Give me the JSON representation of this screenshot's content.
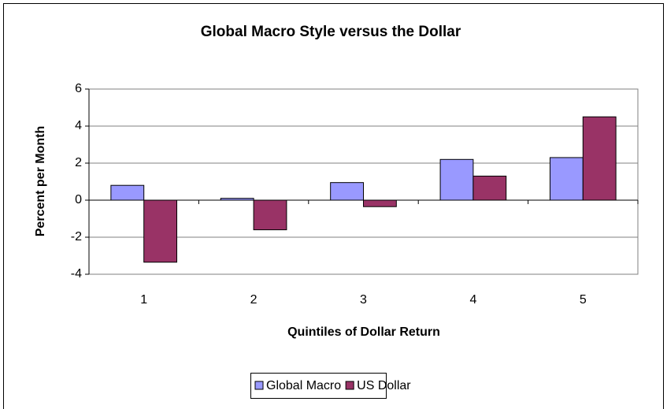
{
  "chart_data": {
    "type": "bar",
    "title": "Global Macro Style versus the Dollar",
    "x_label": "Quintiles of Dollar Return",
    "y_label": "Percent per Month",
    "categories": [
      "1",
      "2",
      "3",
      "4",
      "5"
    ],
    "series": [
      {
        "name": "Global Macro",
        "color": "#9999ff",
        "values": [
          0.8,
          0.1,
          0.95,
          2.2,
          2.3
        ]
      },
      {
        "name": "US Dollar",
        "color": "#993366",
        "values": [
          -3.35,
          -1.6,
          -0.35,
          1.3,
          4.5
        ]
      }
    ],
    "ylim": [
      -4,
      6
    ],
    "yticks": [
      -4,
      -2,
      0,
      2,
      4,
      6
    ],
    "grid": true,
    "legend": "bottom"
  }
}
